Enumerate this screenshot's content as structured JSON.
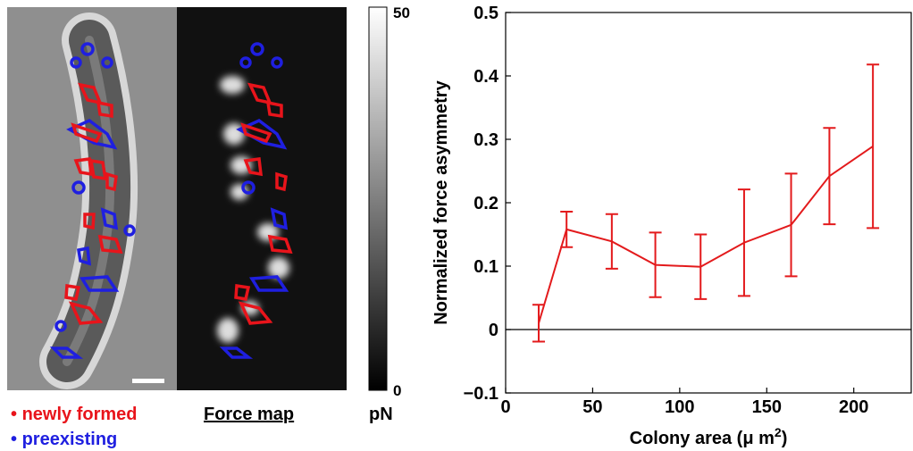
{
  "chart_data": {
    "type": "line",
    "x": [
      19,
      35,
      61,
      86,
      112,
      137,
      164,
      186,
      211
    ],
    "values": [
      0.01,
      0.158,
      0.139,
      0.102,
      0.099,
      0.137,
      0.165,
      0.242,
      0.289
    ],
    "errors": [
      0.029,
      0.028,
      0.043,
      0.051,
      0.051,
      0.084,
      0.081,
      0.076,
      0.129
    ],
    "color": "#e31a1c",
    "xlim": [
      0,
      233
    ],
    "xticks": [
      0,
      50,
      100,
      150,
      200
    ],
    "ylim": [
      -0.1,
      0.5
    ],
    "yticks": [
      {
        "value": -0.1,
        "label": "−0.1"
      },
      0,
      0.1,
      0.2,
      0.3,
      0.4,
      0.5
    ],
    "hline": 0,
    "xlabel": {
      "text": "Colony area (μ m",
      "superscript": "2",
      "suffix": ")"
    },
    "ylabel": "Normalized force asymmetry"
  },
  "image_panel": {
    "legend": [
      {
        "marker": "•",
        "label": "newly formed",
        "color": "#e8141b"
      },
      {
        "marker": "•",
        "label": "preexisting",
        "color": "#1f1fe0"
      }
    ],
    "force_map_label": "Force map",
    "colorbar": {
      "unit": "pN",
      "max": 50,
      "min": 0
    }
  }
}
